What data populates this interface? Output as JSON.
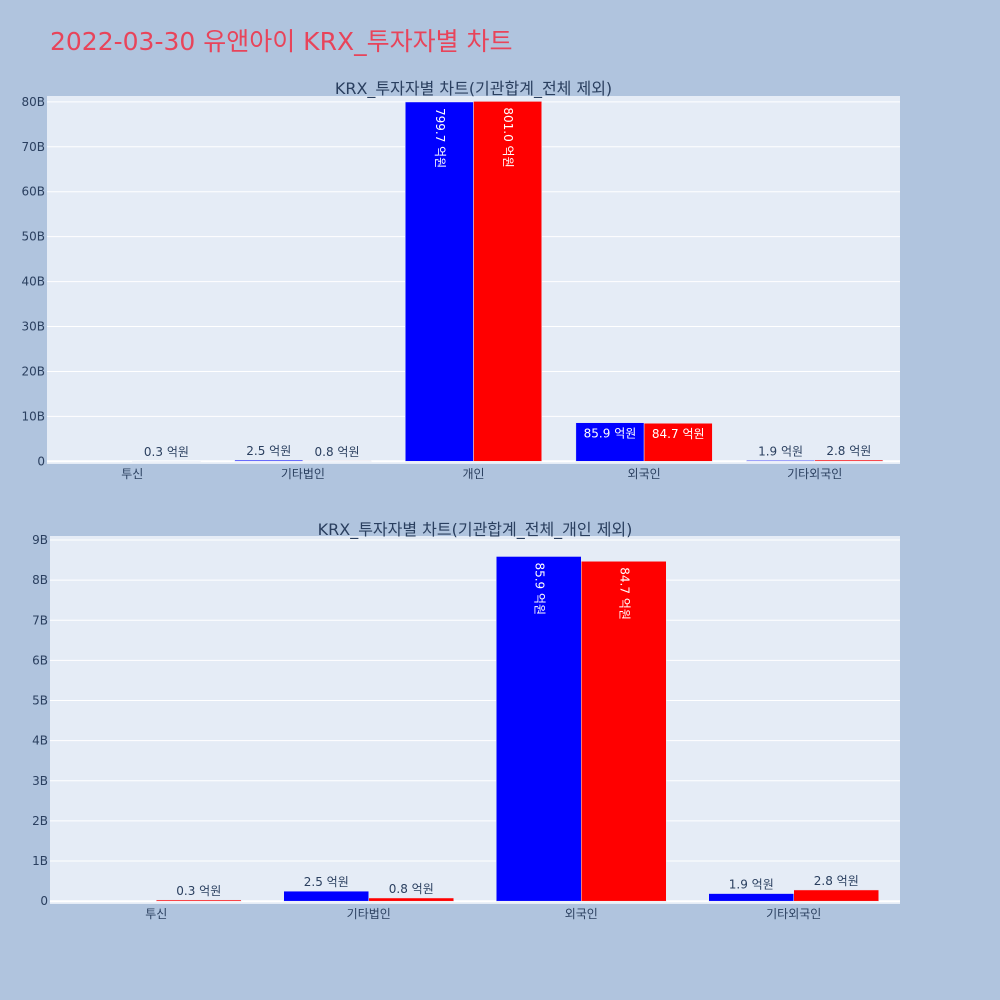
{
  "page": {
    "title": "2022-03-30 유앤아이 KRX_투자자별 차트"
  },
  "colors": {
    "background": "#b0c4de",
    "plot_bg": "#e5ecf6",
    "title": "#e8445a",
    "series_a": "#0000ff",
    "series_b": "#ff0000"
  },
  "chart_data": [
    {
      "type": "bar",
      "title": "KRX_투자자별 차트(기관합계_전체 제외)",
      "categories": [
        "투신",
        "기타법인",
        "개인",
        "외국인",
        "기타외국인"
      ],
      "series": [
        {
          "values": [
            0,
            0.25,
            79.97,
            8.59,
            0.19
          ],
          "labels": [
            "",
            "2.5 억원",
            "799.7 억원",
            "85.9 억원",
            "1.9 억원"
          ],
          "color": "#0000ff"
        },
        {
          "values": [
            0.03,
            0.08,
            80.1,
            8.47,
            0.28
          ],
          "labels": [
            "0.3 억원",
            "0.8 억원",
            "801.0 억원",
            "84.7 억원",
            "2.8 억원"
          ],
          "color": "#ff0000"
        }
      ],
      "yticks": [
        0,
        10,
        20,
        30,
        40,
        50,
        60,
        70,
        80
      ],
      "ytick_labels": [
        "0",
        "10B",
        "20B",
        "30B",
        "40B",
        "50B",
        "60B",
        "70B",
        "80B"
      ],
      "ylim": [
        -0.6,
        81.3
      ],
      "grid": true
    },
    {
      "type": "bar",
      "title": "KRX_투자자별 차트(기관합계_전체_개인 제외)",
      "categories": [
        "투신",
        "기타법인",
        "외국인",
        "기타외국인"
      ],
      "series": [
        {
          "values": [
            0,
            0.25,
            8.59,
            0.19
          ],
          "labels": [
            "",
            "2.5 억원",
            "85.9 억원",
            "1.9 억원"
          ],
          "color": "#0000ff"
        },
        {
          "values": [
            0.03,
            0.08,
            8.47,
            0.28
          ],
          "labels": [
            "0.3 억원",
            "0.8 억원",
            "84.7 억원",
            "2.8 억원"
          ],
          "color": "#ff0000"
        }
      ],
      "yticks": [
        0,
        1,
        2,
        3,
        4,
        5,
        6,
        7,
        8,
        9
      ],
      "ytick_labels": [
        "0",
        "1B",
        "2B",
        "3B",
        "4B",
        "5B",
        "6B",
        "7B",
        "8B",
        "9B"
      ],
      "ylim": [
        -0.07,
        9.1
      ],
      "grid": true
    }
  ]
}
